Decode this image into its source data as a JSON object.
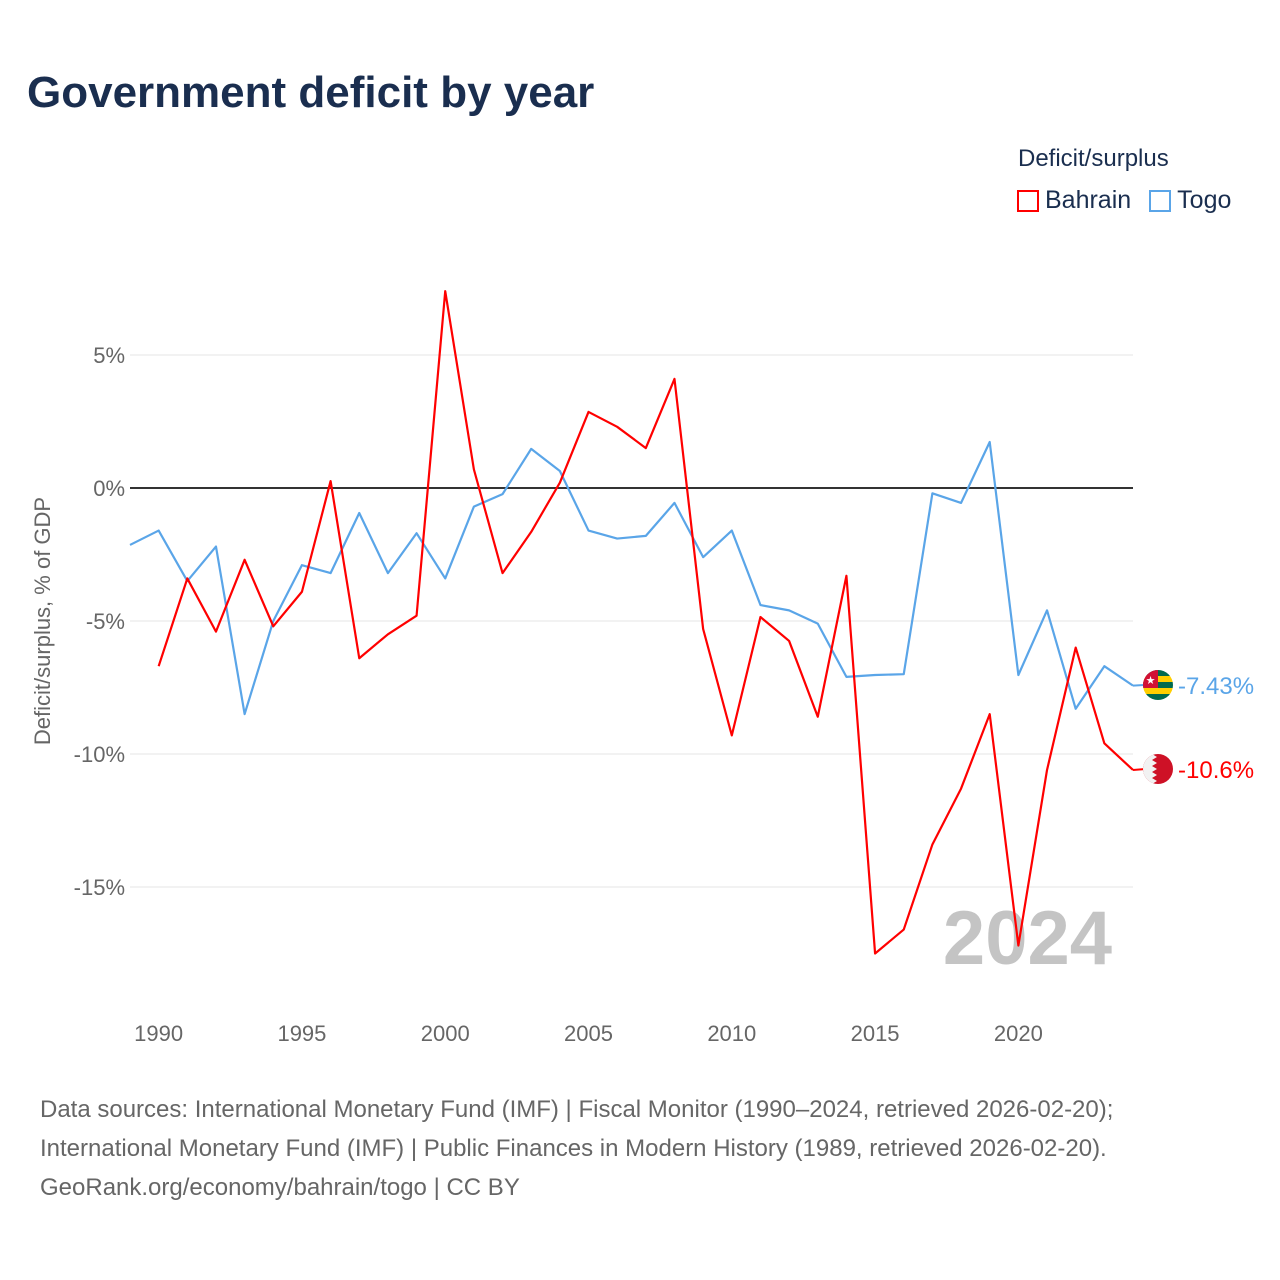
{
  "chart_data": {
    "type": "line",
    "title": "Government deficit by year",
    "xlabel": "",
    "ylabel": "Deficit/surplus, % of GDP",
    "ylim": [
      -19,
      8.5
    ],
    "xlim": [
      1989,
      2024
    ],
    "yticks": [
      {
        "value": 5,
        "label": "5%"
      },
      {
        "value": 0,
        "label": "0%"
      },
      {
        "value": -5,
        "label": "-5%"
      },
      {
        "value": -10,
        "label": "-10%"
      },
      {
        "value": -15,
        "label": "-15%"
      }
    ],
    "xticks": [
      {
        "value": 1990,
        "label": "1990"
      },
      {
        "value": 1995,
        "label": "1995"
      },
      {
        "value": 2000,
        "label": "2000"
      },
      {
        "value": 2005,
        "label": "2005"
      },
      {
        "value": 2010,
        "label": "2010"
      },
      {
        "value": 2015,
        "label": "2015"
      },
      {
        "value": 2020,
        "label": "2020"
      }
    ],
    "grid": true,
    "legend_title": "Deficit/surplus",
    "legend_position": "top-right",
    "year_watermark": "2024",
    "series": [
      {
        "name": "Bahrain",
        "color": "#ff0000",
        "end_label": "-10.6%",
        "flag": "bahrain-flag",
        "x": [
          1990,
          1991,
          1992,
          1993,
          1994,
          1995,
          1996,
          1997,
          1998,
          1999,
          2000,
          2001,
          2002,
          2003,
          2004,
          2005,
          2006,
          2007,
          2008,
          2009,
          2010,
          2011,
          2012,
          2013,
          2014,
          2015,
          2016,
          2017,
          2018,
          2019,
          2020,
          2021,
          2022,
          2023,
          2024
        ],
        "values": [
          -6.7,
          -3.4,
          -5.4,
          -2.7,
          -5.2,
          -3.9,
          0.26,
          -6.4,
          -5.5,
          -4.8,
          7.4,
          0.7,
          -3.2,
          -1.65,
          0.2,
          2.86,
          2.3,
          1.5,
          4.1,
          -5.3,
          -9.3,
          -4.85,
          -5.75,
          -8.6,
          -3.3,
          -17.5,
          -16.6,
          -13.4,
          -11.3,
          -8.5,
          -17.2,
          -10.6,
          -6.0,
          -9.6,
          -10.6
        ]
      },
      {
        "name": "Togo",
        "color": "#5aa5e8",
        "end_label": "-7.43%",
        "flag": "togo-flag",
        "x": [
          1989,
          1990,
          1991,
          1992,
          1993,
          1994,
          1995,
          1996,
          1997,
          1998,
          1999,
          2000,
          2001,
          2002,
          2003,
          2004,
          2005,
          2006,
          2007,
          2008,
          2009,
          2010,
          2011,
          2012,
          2013,
          2014,
          2015,
          2016,
          2017,
          2018,
          2019,
          2020,
          2021,
          2022,
          2023,
          2024
        ],
        "values": [
          -2.14,
          -1.6,
          -3.5,
          -2.2,
          -8.5,
          -5.0,
          -2.9,
          -3.2,
          -0.94,
          -3.2,
          -1.7,
          -3.4,
          -0.7,
          -0.23,
          1.47,
          0.64,
          -1.6,
          -1.9,
          -1.8,
          -0.56,
          -2.6,
          -1.6,
          -4.4,
          -4.6,
          -5.1,
          -7.1,
          -7.03,
          -7.0,
          -0.2,
          -0.56,
          1.73,
          -7.03,
          -4.6,
          -8.3,
          -6.7,
          -7.43
        ]
      }
    ]
  },
  "footer": {
    "line1": "Data sources: International Monetary Fund (IMF) | Fiscal Monitor (1990–2024, retrieved 2026-02-20);",
    "line2": "International Monetary Fund (IMF) | Public Finances in Modern History (1989, retrieved 2026-02-20).",
    "line3": "GeoRank.org/economy/bahrain/togo | CC BY"
  }
}
